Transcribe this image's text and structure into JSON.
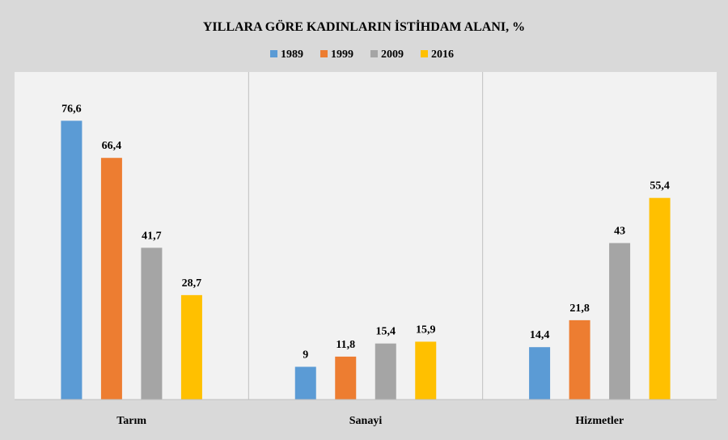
{
  "chart_data": {
    "type": "bar",
    "title": "YILLARA GÖRE KADINLARIN İSTİHDAM ALANI, %",
    "categories": [
      "Tarım",
      "Sanayi",
      "Hizmetler"
    ],
    "series": [
      {
        "name": "1989",
        "color": "#5b9bd5",
        "values": [
          76.6,
          9,
          14.4
        ],
        "labels": [
          "76,6",
          "9",
          "14,4"
        ]
      },
      {
        "name": "1999",
        "color": "#ed7d31",
        "values": [
          66.4,
          11.8,
          21.8
        ],
        "labels": [
          "66,4",
          "11,8",
          "21,8"
        ]
      },
      {
        "name": "2009",
        "color": "#a5a5a5",
        "values": [
          41.7,
          15.4,
          43
        ],
        "labels": [
          "41,7",
          "15,4",
          "43"
        ]
      },
      {
        "name": "2016",
        "color": "#ffc000",
        "values": [
          28.7,
          15.9,
          55.4
        ],
        "labels": [
          "28,7",
          "15,9",
          "55,4"
        ]
      }
    ],
    "ylim": [
      0,
      90
    ],
    "grid": false,
    "legend": "top-center"
  }
}
